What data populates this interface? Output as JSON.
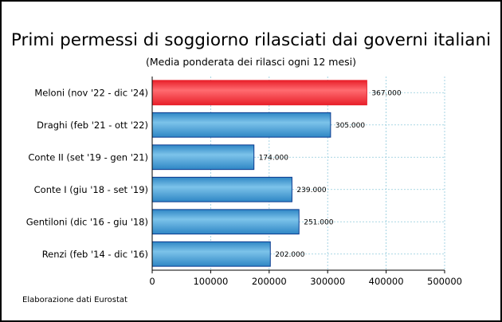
{
  "chart_data": {
    "type": "bar",
    "orientation": "horizontal",
    "title": "Primi permessi di soggiorno rilasciati dai governi italiani",
    "subtitle": "(Media ponderata dei rilasci ogni 12 mesi)",
    "xlabel": "",
    "ylabel": "",
    "xlim": [
      0,
      500000
    ],
    "x_ticks": [
      0,
      100000,
      200000,
      300000,
      400000,
      500000
    ],
    "x_tick_labels": [
      "0",
      "100000",
      "200000",
      "300000",
      "400000",
      "500000"
    ],
    "grid": true,
    "categories": [
      "Meloni (nov '22 - dic '24)",
      "Draghi (feb '21 - ott '22)",
      "Conte II (set '19 - gen '21)",
      "Conte I (giu '18 - set '19)",
      "Gentiloni (dic '16 - giu '18)",
      "Renzi (feb '14 - dic '16)"
    ],
    "values": [
      367000,
      305000,
      174000,
      239000,
      251000,
      202000
    ],
    "value_labels": [
      "367.000",
      "305.000",
      "174.000",
      "239.000",
      "251.000",
      "202.000"
    ],
    "highlight_index": 0,
    "colors": {
      "highlight": "#e8202a",
      "highlight_light": "#ff6b70",
      "bar": "#2f86c5",
      "bar_light": "#7cc3ea",
      "bar_edge": "#0b3a8f",
      "grid": "#8fc9dc"
    }
  },
  "source": "Elaborazione dati Eurostat"
}
